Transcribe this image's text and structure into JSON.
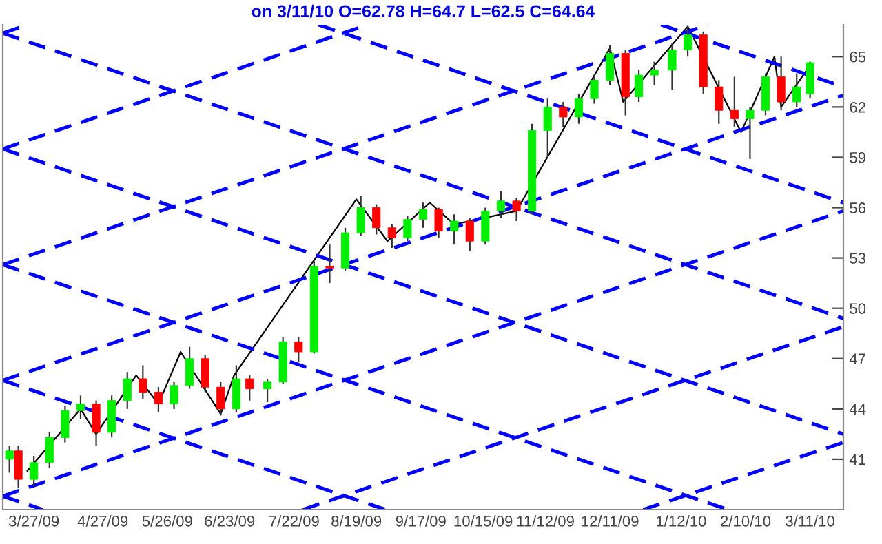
{
  "chart_data": {
    "type": "candlestick",
    "title": "on 3/11/10 O=62.78 H=64.7 L=62.5 C=64.64",
    "xlim": [
      "2009-03-13",
      "2010-03-26"
    ],
    "ylim": [
      38.0,
      66.9
    ],
    "yticks": [
      41,
      44,
      47,
      50,
      53,
      56,
      59,
      62,
      65
    ],
    "xticks": [
      {
        "value": "2009-03-27",
        "label": "3/27/09"
      },
      {
        "value": "2009-04-27",
        "label": "4/27/09"
      },
      {
        "value": "2009-05-26",
        "label": "5/26/09"
      },
      {
        "value": "2009-06-23",
        "label": "6/23/09"
      },
      {
        "value": "2009-07-22",
        "label": "7/22/09"
      },
      {
        "value": "2009-08-19",
        "label": "8/19/09"
      },
      {
        "value": "2009-09-17",
        "label": "9/17/09"
      },
      {
        "value": "2009-10-15",
        "label": "10/15/09"
      },
      {
        "value": "2009-11-12",
        "label": "11/12/09"
      },
      {
        "value": "2009-12-11",
        "label": "12/11/09"
      },
      {
        "value": "2010-01-12",
        "label": "1/12/10"
      },
      {
        "value": "2010-02-10",
        "label": "2/10/10"
      },
      {
        "value": "2010-03-11",
        "label": "3/11/10"
      }
    ],
    "grid": false,
    "legend": false,
    "x": [
      "2009-03-16",
      "2009-03-20",
      "2009-03-27",
      "2009-04-03",
      "2009-04-10",
      "2009-04-17",
      "2009-04-24",
      "2009-05-01",
      "2009-05-08",
      "2009-05-15",
      "2009-05-22",
      "2009-05-29",
      "2009-06-05",
      "2009-06-12",
      "2009-06-19",
      "2009-06-26",
      "2009-07-02",
      "2009-07-10",
      "2009-07-17",
      "2009-07-24",
      "2009-07-31",
      "2009-08-07",
      "2009-08-14",
      "2009-08-21",
      "2009-08-28",
      "2009-09-04",
      "2009-09-11",
      "2009-09-18",
      "2009-09-25",
      "2009-10-02",
      "2009-10-09",
      "2009-10-16",
      "2009-10-23",
      "2009-10-30",
      "2009-11-06",
      "2009-11-13",
      "2009-11-20",
      "2009-11-27",
      "2009-12-04",
      "2009-12-11",
      "2009-12-18",
      "2009-12-24",
      "2009-12-31",
      "2010-01-08",
      "2010-01-15",
      "2010-01-22",
      "2010-01-29",
      "2010-02-05",
      "2010-02-12",
      "2010-02-19",
      "2010-02-26",
      "2010-03-05",
      "2010-03-11"
    ],
    "ohlc": [
      [
        41.0,
        41.8,
        40.2,
        41.5
      ],
      [
        41.5,
        41.8,
        39.3,
        39.8
      ],
      [
        39.8,
        41.2,
        39.4,
        40.8
      ],
      [
        40.8,
        42.6,
        40.5,
        42.3
      ],
      [
        42.3,
        44.2,
        42.0,
        43.9
      ],
      [
        43.9,
        44.8,
        43.4,
        44.3
      ],
      [
        44.3,
        44.5,
        41.8,
        42.6
      ],
      [
        42.6,
        44.8,
        42.3,
        44.5
      ],
      [
        44.5,
        46.2,
        44.0,
        45.8
      ],
      [
        45.8,
        46.6,
        44.6,
        45.0
      ],
      [
        45.0,
        45.3,
        43.8,
        44.3
      ],
      [
        44.3,
        45.6,
        44.0,
        45.4
      ],
      [
        45.4,
        47.7,
        45.2,
        47.0
      ],
      [
        47.0,
        47.2,
        45.0,
        45.3
      ],
      [
        45.3,
        45.6,
        43.6,
        44.0
      ],
      [
        44.0,
        46.6,
        43.8,
        45.8
      ],
      [
        45.8,
        46.0,
        44.5,
        45.2
      ],
      [
        45.2,
        45.8,
        44.4,
        45.6
      ],
      [
        45.6,
        48.3,
        45.5,
        48.0
      ],
      [
        48.0,
        48.3,
        46.8,
        47.4
      ],
      [
        47.4,
        52.8,
        47.3,
        52.5
      ],
      [
        52.5,
        53.8,
        51.5,
        52.4
      ],
      [
        52.4,
        54.8,
        52.2,
        54.5
      ],
      [
        54.5,
        56.7,
        54.3,
        56.0
      ],
      [
        56.0,
        56.2,
        54.4,
        54.8
      ],
      [
        54.8,
        55.0,
        53.6,
        54.2
      ],
      [
        54.2,
        55.5,
        54.0,
        55.3
      ],
      [
        55.3,
        56.3,
        54.8,
        55.9
      ],
      [
        55.9,
        56.0,
        54.2,
        54.6
      ],
      [
        54.6,
        55.6,
        53.8,
        55.2
      ],
      [
        55.2,
        55.4,
        53.4,
        54.0
      ],
      [
        54.0,
        56.0,
        53.8,
        55.8
      ],
      [
        55.8,
        57.0,
        55.4,
        56.4
      ],
      [
        56.4,
        56.6,
        55.2,
        55.8
      ],
      [
        55.8,
        61.0,
        55.6,
        60.6
      ],
      [
        60.6,
        62.5,
        59.0,
        62.0
      ],
      [
        62.0,
        62.3,
        60.8,
        61.4
      ],
      [
        61.4,
        62.8,
        61.0,
        62.5
      ],
      [
        62.5,
        63.9,
        62.2,
        63.6
      ],
      [
        63.6,
        65.7,
        63.3,
        65.2
      ],
      [
        65.2,
        65.4,
        61.5,
        62.6
      ],
      [
        62.6,
        64.2,
        62.3,
        63.9
      ],
      [
        63.9,
        64.7,
        63.3,
        64.2
      ],
      [
        64.2,
        65.8,
        63.0,
        65.4
      ],
      [
        65.4,
        66.8,
        65.0,
        66.3
      ],
      [
        66.3,
        66.5,
        62.8,
        63.2
      ],
      [
        63.2,
        63.6,
        61.0,
        61.8
      ],
      [
        61.8,
        63.8,
        60.8,
        61.3
      ],
      [
        61.3,
        62.0,
        58.9,
        61.8
      ],
      [
        61.8,
        64.0,
        61.5,
        63.8
      ],
      [
        63.8,
        65.0,
        61.8,
        62.3
      ],
      [
        62.3,
        64.0,
        62.0,
        63.2
      ],
      [
        62.78,
        64.7,
        62.5,
        64.64
      ]
    ],
    "colors": [
      "#00ee00",
      "#ff0000",
      "#00ee00",
      "#00ee00",
      "#00ee00",
      "#00ee00",
      "#ff0000",
      "#00ee00",
      "#00ee00",
      "#ff0000",
      "#ff0000",
      "#00ee00",
      "#00ee00",
      "#ff0000",
      "#ff0000",
      "#00ee00",
      "#ff0000",
      "#00ee00",
      "#00ee00",
      "#ff0000",
      "#00ee00",
      "#ff0000",
      "#00ee00",
      "#00ee00",
      "#ff0000",
      "#ff0000",
      "#00ee00",
      "#00ee00",
      "#ff0000",
      "#00ee00",
      "#ff0000",
      "#00ee00",
      "#00ee00",
      "#ff0000",
      "#00ee00",
      "#00ee00",
      "#ff0000",
      "#00ee00",
      "#00ee00",
      "#00ee00",
      "#ff0000",
      "#00ee00",
      "#00ee00",
      "#00ee00",
      "#00ee00",
      "#ff0000",
      "#ff0000",
      "#ff0000",
      "#00ee00",
      "#00ee00",
      "#ff0000",
      "#00ee00",
      "#00ee00"
    ],
    "series": [
      {
        "type": "line",
        "color": "#000000",
        "line_style": "solid",
        "x": [
          "2009-03-24",
          "2009-04-17",
          "2009-04-24",
          "2009-05-12",
          "2009-05-22",
          "2009-06-01",
          "2009-06-19",
          "2009-06-25",
          "2009-08-19",
          "2009-09-02",
          "2009-09-21",
          "2009-10-02",
          "2009-10-30",
          "2009-12-11",
          "2009-12-17",
          "2010-01-15",
          "2010-02-08",
          "2010-02-23",
          "2010-02-26",
          "2010-03-10"
        ],
        "values": [
          40.3,
          44.0,
          42.5,
          46.0,
          44.3,
          47.4,
          43.7,
          46.0,
          56.5,
          54.0,
          56.3,
          55.0,
          55.8,
          65.5,
          62.3,
          66.8,
          60.5,
          65.0,
          62.0,
          64.3
        ]
      },
      {
        "type": "line",
        "color": "#0000ff",
        "line_style": "dashed",
        "x": [
          "2009-03-13",
          "2010-03-26"
        ],
        "values": [
          38.8,
          55.8
        ]
      },
      {
        "type": "line",
        "color": "#0000ff",
        "line_style": "dashed",
        "x": [
          "2009-03-13",
          "2010-03-26"
        ],
        "values": [
          45.7,
          62.7
        ]
      },
      {
        "type": "line",
        "color": "#0000ff",
        "line_style": "dashed",
        "x": [
          "2009-03-13",
          "2010-01-24"
        ],
        "values": [
          52.6,
          66.9
        ]
      },
      {
        "type": "line",
        "color": "#0000ff",
        "line_style": "dashed",
        "x": [
          "2009-03-13",
          "2009-08-24"
        ],
        "values": [
          59.5,
          66.9
        ]
      },
      {
        "type": "line",
        "color": "#0000ff",
        "line_style": "dashed",
        "x": [
          "2009-03-13",
          "2009-03-24"
        ],
        "values": [
          66.4,
          66.9
        ]
      },
      {
        "type": "line",
        "color": "#0000ff",
        "line_style": "dashed",
        "x": [
          "2009-07-26",
          "2010-03-26"
        ],
        "values": [
          38.0,
          48.9
        ]
      },
      {
        "type": "line",
        "color": "#0000ff",
        "line_style": "dashed",
        "x": [
          "2009-12-26",
          "2010-03-26"
        ],
        "values": [
          38.0,
          42.0
        ]
      },
      {
        "type": "line",
        "color": "#0000ff",
        "line_style": "dashed",
        "x": [
          "2009-03-13",
          "2010-03-26"
        ],
        "values": [
          66.4,
          49.4
        ]
      },
      {
        "type": "line",
        "color": "#0000ff",
        "line_style": "dashed",
        "x": [
          "2009-03-13",
          "2010-03-26"
        ],
        "values": [
          59.5,
          42.5
        ]
      },
      {
        "type": "line",
        "color": "#0000ff",
        "line_style": "dashed",
        "x": [
          "2009-03-13",
          "2010-02-02"
        ],
        "values": [
          52.6,
          38.0
        ]
      },
      {
        "type": "line",
        "color": "#0000ff",
        "line_style": "dashed",
        "x": [
          "2009-03-13",
          "2009-09-01"
        ],
        "values": [
          45.7,
          38.0
        ]
      },
      {
        "type": "line",
        "color": "#0000ff",
        "line_style": "dashed",
        "x": [
          "2009-03-13",
          "2009-03-31"
        ],
        "values": [
          38.8,
          38.0
        ]
      },
      {
        "type": "line",
        "color": "#0000ff",
        "line_style": "dashed",
        "x": [
          "2009-08-02",
          "2010-03-26"
        ],
        "values": [
          66.9,
          56.3
        ]
      },
      {
        "type": "line",
        "color": "#0000ff",
        "line_style": "dashed",
        "x": [
          "2010-01-03",
          "2010-03-26"
        ],
        "values": [
          66.9,
          63.2
        ]
      }
    ]
  }
}
